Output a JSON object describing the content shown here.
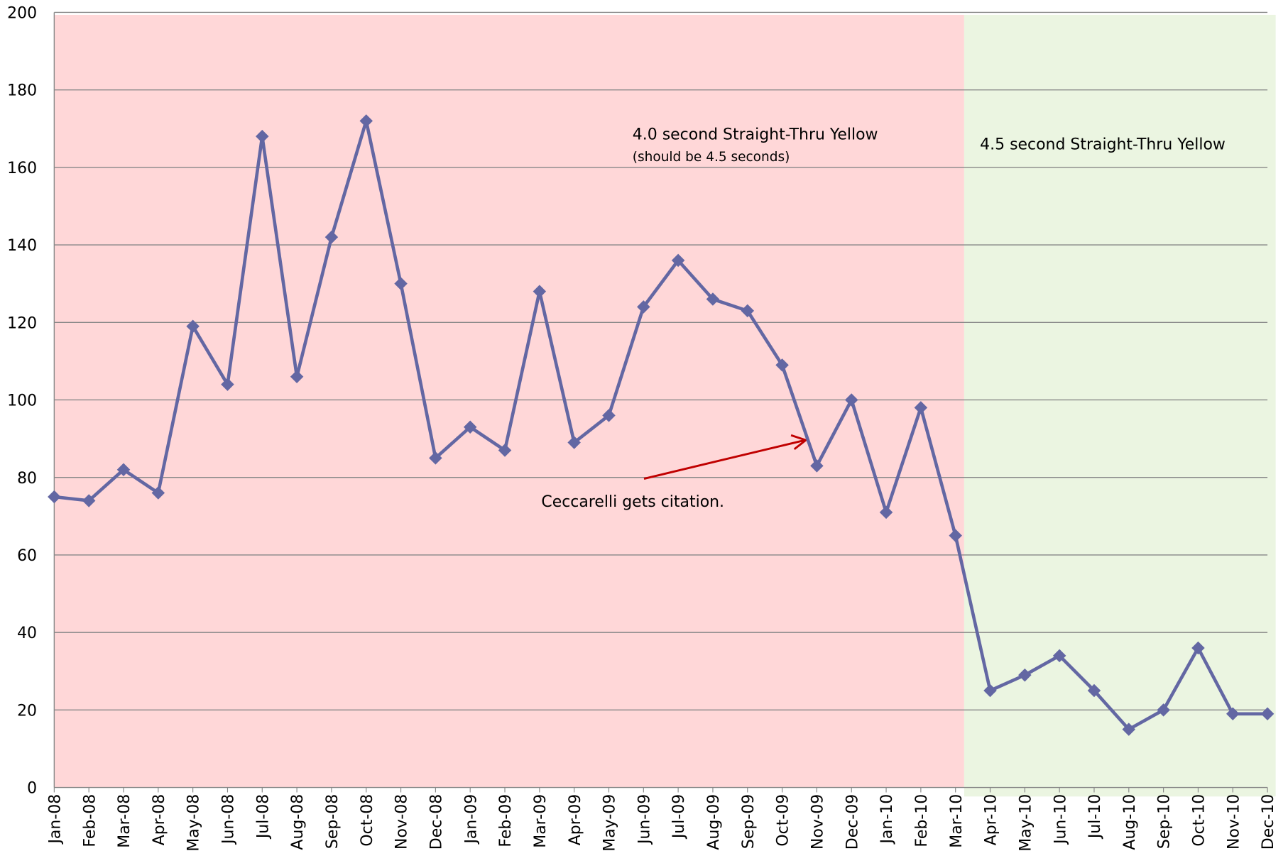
{
  "chart_data": {
    "type": "line",
    "categories": [
      "Jan-08",
      "Feb-08",
      "Mar-08",
      "Apr-08",
      "May-08",
      "Jun-08",
      "Jul-08",
      "Aug-08",
      "Sep-08",
      "Oct-08",
      "Nov-08",
      "Dec-08",
      "Jan-09",
      "Feb-09",
      "Mar-09",
      "Apr-09",
      "May-09",
      "Jun-09",
      "Jul-09",
      "Aug-09",
      "Sep-09",
      "Oct-09",
      "Nov-09",
      "Dec-09",
      "Jan-10",
      "Feb-10",
      "Mar-10",
      "Apr-10",
      "May-10",
      "Jun-10",
      "Jul-10",
      "Aug-10",
      "Sep-10",
      "Oct-10",
      "Nov-10",
      "Dec-10"
    ],
    "series": [
      {
        "color": "#6367a3",
        "values": [
          75,
          74,
          82,
          76,
          119,
          104,
          168,
          106,
          142,
          172,
          130,
          85,
          93,
          87,
          128,
          89,
          96,
          124,
          136,
          126,
          123,
          109,
          83,
          100,
          71,
          98,
          65,
          25,
          29,
          34,
          25,
          15,
          20,
          36,
          19,
          19
        ]
      }
    ],
    "ylim": [
      0,
      200
    ],
    "yticks": [
      0,
      20,
      40,
      60,
      80,
      100,
      120,
      140,
      160,
      180,
      200
    ],
    "grid": true,
    "regions": [
      {
        "label": "4.0 second Straight-Thru Yellow",
        "sublabel": "(should be 4.5 seconds)",
        "color": "#ffd7d8"
      },
      {
        "label": "4.5 second Straight-Thru Yellow",
        "color": "#ebf5e1"
      }
    ],
    "annotations": [
      {
        "text": "Ceccarelli gets citation.",
        "color": "#c00000"
      }
    ]
  }
}
